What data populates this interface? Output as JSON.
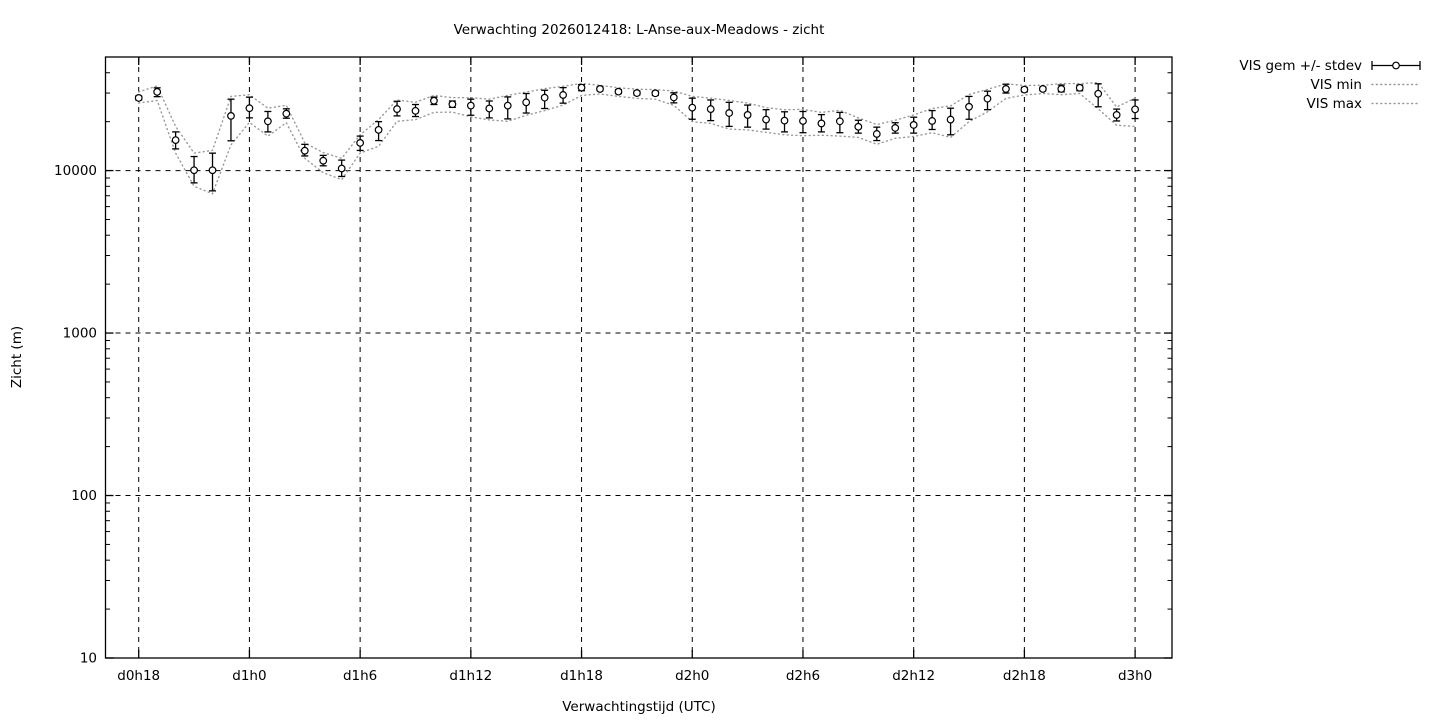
{
  "chart_data": {
    "type": "scatter",
    "title": "Verwachting 2026012418: L-Anse-aux-Meadows - zicht",
    "xlabel": "Verwachtingstijd (UTC)",
    "ylabel": "Zicht (m)",
    "y_scale": "log10",
    "ylim": [
      10,
      50000
    ],
    "xlim_hours": [
      16.2,
      74.0
    ],
    "grid": true,
    "legend_position": "outside-top-right",
    "colors": {
      "foreground": "#000000",
      "minmax_band": "#9a9a9a",
      "background": "#ffffff"
    },
    "x_ticks": [
      {
        "hour": 18,
        "label": "d0h18"
      },
      {
        "hour": 24,
        "label": "d1h0"
      },
      {
        "hour": 30,
        "label": "d1h6"
      },
      {
        "hour": 36,
        "label": "d1h12"
      },
      {
        "hour": 42,
        "label": "d1h18"
      },
      {
        "hour": 48,
        "label": "d2h0"
      },
      {
        "hour": 54,
        "label": "d2h6"
      },
      {
        "hour": 60,
        "label": "d2h12"
      },
      {
        "hour": 66,
        "label": "d2h18"
      },
      {
        "hour": 72,
        "label": "d3h0"
      }
    ],
    "y_ticks": [
      {
        "value": 10,
        "label": "10"
      },
      {
        "value": 100,
        "label": "100"
      },
      {
        "value": 1000,
        "label": "1000"
      },
      {
        "value": 10000,
        "label": "10000"
      }
    ],
    "legend": [
      {
        "label": "VIS gem +/- stdev",
        "style": "errorbar"
      },
      {
        "label": "VIS min",
        "style": "dotted"
      },
      {
        "label": "VIS max",
        "style": "dotted"
      }
    ],
    "series": {
      "hours": [
        18,
        19,
        20,
        21,
        22,
        23,
        24,
        25,
        26,
        27,
        28,
        29,
        30,
        31,
        32,
        33,
        34,
        35,
        36,
        37,
        38,
        39,
        40,
        41,
        42,
        43,
        44,
        45,
        46,
        47,
        48,
        49,
        50,
        51,
        52,
        53,
        54,
        55,
        56,
        57,
        58,
        59,
        60,
        61,
        62,
        63,
        64,
        65,
        66,
        67,
        68,
        69,
        70,
        71,
        72
      ],
      "vis_gem": [
        28000,
        30500,
        15400,
        10050,
        10050,
        21700,
        24200,
        20100,
        22400,
        13250,
        11500,
        10300,
        14800,
        17800,
        23900,
        23300,
        26900,
        25600,
        25100,
        24100,
        25100,
        26300,
        28100,
        29200,
        32400,
        31800,
        30600,
        30000,
        29900,
        28200,
        24400,
        23900,
        22600,
        22000,
        20600,
        20300,
        20200,
        19500,
        20100,
        18600,
        16800,
        18300,
        19100,
        20200,
        20600,
        24700,
        27700,
        31800,
        31500,
        31800,
        31800,
        32300,
        29700,
        22000,
        23800
      ],
      "stdev_lo": [
        27200,
        28500,
        13600,
        8400,
        7500,
        15250,
        21100,
        17300,
        21000,
        12300,
        10700,
        9200,
        13300,
        15300,
        21700,
        21500,
        25500,
        24500,
        21900,
        21100,
        20800,
        22600,
        24100,
        26000,
        31000,
        31000,
        29800,
        29200,
        29000,
        26100,
        20700,
        20300,
        18700,
        18500,
        18000,
        17300,
        17100,
        17300,
        17100,
        17000,
        15300,
        17000,
        17000,
        17900,
        16600,
        20700,
        23700,
        30000,
        30500,
        31000,
        30500,
        31000,
        24700,
        20200,
        20900
      ],
      "stdev_hi": [
        28800,
        32300,
        17300,
        12200,
        12800,
        27500,
        28300,
        23100,
        24000,
        14500,
        12400,
        11600,
        16300,
        20000,
        26700,
        25500,
        28300,
        26800,
        27500,
        26800,
        28400,
        29800,
        31200,
        32400,
        33800,
        32700,
        31500,
        30900,
        30800,
        30100,
        27900,
        27200,
        26300,
        25300,
        23700,
        23000,
        23100,
        22100,
        22800,
        20400,
        18500,
        19700,
        21300,
        23400,
        24200,
        28600,
        30800,
        34000,
        32500,
        32600,
        33600,
        33600,
        34200,
        23900,
        27200
      ],
      "vis_min": [
        26000,
        27000,
        12800,
        8000,
        7200,
        14400,
        19800,
        16300,
        19700,
        11900,
        9700,
        8800,
        12800,
        14100,
        20100,
        20600,
        22800,
        22900,
        21400,
        20500,
        20100,
        21900,
        23400,
        25300,
        29000,
        29600,
        28600,
        27800,
        27500,
        25200,
        20000,
        19500,
        18000,
        17800,
        17200,
        16600,
        16400,
        16500,
        16300,
        16000,
        14500,
        15800,
        16200,
        17100,
        16000,
        20000,
        23000,
        27800,
        29200,
        29800,
        29300,
        29800,
        24000,
        19000,
        18700
      ],
      "vis_max": [
        30500,
        33200,
        18700,
        12800,
        13300,
        28600,
        29300,
        24200,
        25200,
        14800,
        12900,
        11900,
        16600,
        20600,
        27200,
        26300,
        29000,
        28100,
        28100,
        27500,
        29000,
        30400,
        31900,
        33000,
        34400,
        33500,
        32300,
        31700,
        31500,
        30900,
        28600,
        27900,
        27000,
        26000,
        24400,
        23700,
        23800,
        22800,
        23500,
        21100,
        19200,
        20400,
        22000,
        24100,
        25000,
        29400,
        31600,
        34200,
        33400,
        33500,
        34300,
        34300,
        34800,
        24600,
        27900
      ]
    }
  }
}
